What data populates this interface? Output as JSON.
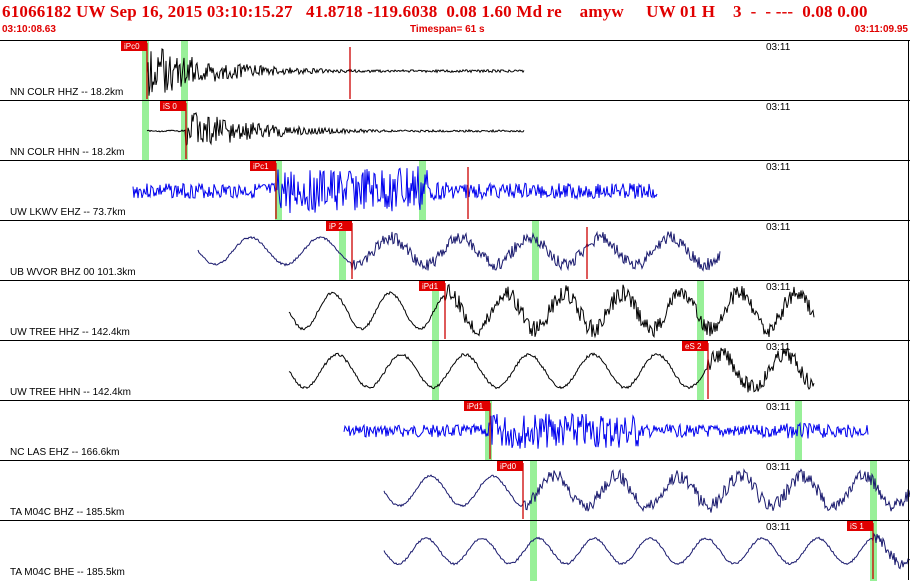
{
  "header": {
    "title": "61066182 UW Sep 16, 2015 03:10:15.27   41.8718 -119.6038  0.08 1.60 Md re    amyw     UW 01 H    3  -  - ---  0.08 0.00",
    "start_time": "03:10:08.63",
    "timespan": "Timespan=  61 s",
    "end_time": "03:11:09.95"
  },
  "colors": {
    "header_text": "#e00000",
    "pick_box": "#e00000",
    "pick_line": "#cc0000",
    "window": "#98f098",
    "trace_black": "#000000",
    "trace_blue": "#0000ee",
    "trace_navy": "#1a1a6e"
  },
  "traces": [
    {
      "label": "NN COLR HHZ -- 18.2km",
      "time": "03:11",
      "color": "black",
      "style": "burst",
      "start": 147,
      "end": 524,
      "amp": 28,
      "seed": 1,
      "picks": [
        {
          "label": "iPc0",
          "x": 147,
          "type": "P"
        },
        {
          "label": "",
          "x": 350,
          "type": "S"
        }
      ],
      "windows": [
        145,
        184
      ]
    },
    {
      "label": "NN COLR HHN -- 18.2km",
      "time": "03:11",
      "color": "black",
      "style": "burst",
      "start": 147,
      "end": 524,
      "amp": 22,
      "seed": 2,
      "picks": [
        {
          "label": "iS 0",
          "x": 186,
          "type": "S"
        }
      ],
      "windows": [
        145,
        184
      ]
    },
    {
      "label": "UW LKWV EHZ -- 73.7km",
      "time": "03:11",
      "color": "blue",
      "style": "noise",
      "start": 133,
      "end": 657,
      "amp": 22,
      "seed": 3,
      "picks": [
        {
          "label": "iPc1",
          "x": 276,
          "type": "P"
        },
        {
          "label": "",
          "x": 468,
          "type": "S"
        }
      ],
      "windows": [
        278,
        422
      ]
    },
    {
      "label": "UB WVOR BHZ 00 101.3km",
      "time": "03:11",
      "color": "navy",
      "style": "wave",
      "start": 198,
      "end": 720,
      "amp": 18,
      "seed": 4,
      "period": 70,
      "picks": [
        {
          "label": "iP 2",
          "x": 352,
          "type": "P"
        },
        {
          "label": "",
          "x": 587,
          "type": "S"
        }
      ],
      "windows": [
        342,
        535
      ]
    },
    {
      "label": "UW TREE HHZ -- 142.4km",
      "time": "03:11",
      "color": "black",
      "style": "wave",
      "start": 289,
      "end": 814,
      "amp": 24,
      "seed": 5,
      "period": 58,
      "picks": [
        {
          "label": "iPd1",
          "x": 445,
          "type": "P"
        }
      ],
      "windows": [
        435,
        700
      ]
    },
    {
      "label": "UW TREE HHN -- 142.4km",
      "time": "03:11",
      "color": "black",
      "style": "wave",
      "start": 289,
      "end": 814,
      "amp": 22,
      "seed": 6,
      "period": 64,
      "picks": [
        {
          "label": "eS 2",
          "x": 708,
          "type": "S"
        }
      ],
      "windows": [
        435,
        700
      ]
    },
    {
      "label": "NC LAS EHZ -- 166.6km",
      "time": "03:11",
      "color": "blue",
      "style": "noise",
      "start": 344,
      "end": 868,
      "amp": 18,
      "seed": 7,
      "picks": [
        {
          "label": "iPd1",
          "x": 490,
          "type": "P"
        }
      ],
      "windows": [
        488,
        798
      ]
    },
    {
      "label": "TA M04C BHZ -- 185.5km",
      "time": "03:11",
      "color": "navy",
      "style": "wave",
      "start": 384,
      "end": 910,
      "amp": 20,
      "seed": 8,
      "period": 62,
      "picks": [
        {
          "label": "iPd0",
          "x": 523,
          "type": "P"
        }
      ],
      "windows": [
        533,
        873
      ]
    },
    {
      "label": "TA M04C BHE -- 185.5km",
      "time": "03:11",
      "color": "navy",
      "style": "wave",
      "start": 384,
      "end": 910,
      "amp": 17,
      "seed": 9,
      "period": 56,
      "picks": [
        {
          "label": "iS 1",
          "x": 873,
          "type": "S"
        }
      ],
      "windows": [
        533,
        873
      ]
    }
  ]
}
